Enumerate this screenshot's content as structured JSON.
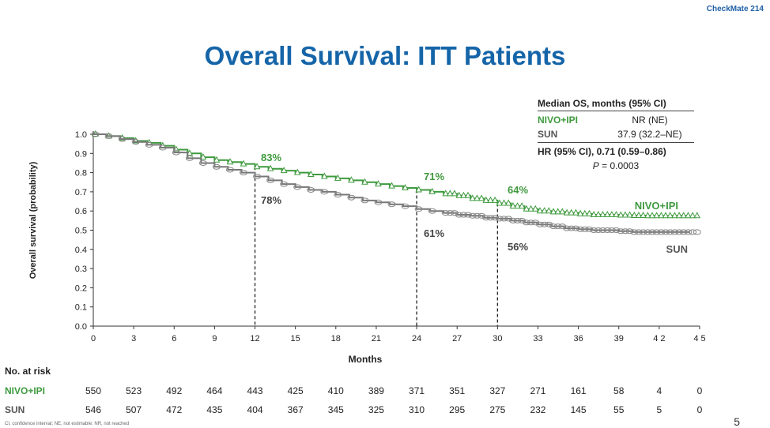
{
  "study_tag": "CheckMate 214",
  "title": "Overall Survival: ITT Patients",
  "page_number": "5",
  "footnote": "CI, confidence interval; NE, not estimable; NR, not reached",
  "median_table": {
    "header": "Median OS, months (95% CI)",
    "rows": [
      {
        "arm": "NIVO+IPI",
        "value": "NR (NE)",
        "color": "#3f9a3f"
      },
      {
        "arm": "SUN",
        "value": "37.9 (32.2–NE)",
        "color": "#555555"
      }
    ],
    "hr_text": "HR (95% CI), 0.71 (0.59–0.86)",
    "p_label": "P",
    "p_value": " = 0.0003"
  },
  "risk_table": {
    "title": "No. at risk",
    "rows": [
      {
        "name": "NIVO+IPI",
        "color": "#3f9a3f",
        "values": [
          "550",
          "523",
          "492",
          "464",
          "443",
          "425",
          "410",
          "389",
          "371",
          "351",
          "327",
          "271",
          "161",
          "58",
          "4",
          "0"
        ]
      },
      {
        "name": "SUN",
        "color": "#555555",
        "values": [
          "546",
          "507",
          "472",
          "435",
          "404",
          "367",
          "345",
          "325",
          "310",
          "295",
          "275",
          "232",
          "145",
          "55",
          "5",
          "0"
        ]
      }
    ]
  },
  "chart_data": {
    "type": "line",
    "title": "Overall Survival: ITT Patients",
    "xlabel": "Months",
    "ylabel": "Overall survival (probability)",
    "xlim": [
      0,
      45
    ],
    "ylim": [
      0,
      1.0
    ],
    "x_ticks": [
      0,
      3,
      6,
      9,
      12,
      15,
      18,
      21,
      24,
      27,
      30,
      33,
      36,
      39,
      42,
      45
    ],
    "x_tick_labels": [
      "0",
      "3",
      "6",
      "9",
      "12",
      "15",
      "18",
      "21",
      "24",
      "27",
      "30",
      "33",
      "36",
      "39",
      "4 2",
      "4 5"
    ],
    "y_ticks": [
      0,
      0.1,
      0.2,
      0.3,
      0.4,
      0.5,
      0.6,
      0.7,
      0.8,
      0.9,
      1.0
    ],
    "y_tick_labels": [
      "0.0",
      "0.1",
      "0.2",
      "0.3",
      "0.4",
      "0.5",
      "0.6",
      "0.7",
      "0.8",
      "0.9",
      "1.0"
    ],
    "series": [
      {
        "name": "NIVO+IPI",
        "color": "#3f9a3f",
        "marker": "triangle",
        "x": [
          0,
          1,
          2,
          3,
          4,
          5,
          6,
          7,
          8,
          9,
          10,
          11,
          12,
          13,
          14,
          15,
          16,
          17,
          18,
          19,
          20,
          21,
          22,
          23,
          24,
          25,
          26,
          27,
          28,
          29,
          30,
          31,
          32,
          33,
          34,
          35,
          36,
          37,
          38,
          39,
          40,
          41,
          42,
          43,
          44
        ],
        "y": [
          1.0,
          0.99,
          0.98,
          0.965,
          0.955,
          0.94,
          0.92,
          0.9,
          0.88,
          0.865,
          0.855,
          0.845,
          0.83,
          0.82,
          0.81,
          0.8,
          0.79,
          0.78,
          0.77,
          0.76,
          0.75,
          0.74,
          0.73,
          0.72,
          0.71,
          0.7,
          0.69,
          0.68,
          0.665,
          0.655,
          0.64,
          0.625,
          0.61,
          0.6,
          0.595,
          0.59,
          0.585,
          0.58,
          0.58,
          0.578,
          0.576,
          0.575,
          0.575,
          0.575,
          0.575
        ]
      },
      {
        "name": "SUN",
        "color": "#777777",
        "marker": "circle",
        "x": [
          0,
          1,
          2,
          3,
          4,
          5,
          6,
          7,
          8,
          9,
          10,
          11,
          12,
          13,
          14,
          15,
          16,
          17,
          18,
          19,
          20,
          21,
          22,
          23,
          24,
          25,
          26,
          27,
          28,
          29,
          30,
          31,
          32,
          33,
          34,
          35,
          36,
          37,
          38,
          39,
          40,
          41,
          42,
          43,
          44
        ],
        "y": [
          1.0,
          0.99,
          0.975,
          0.96,
          0.945,
          0.93,
          0.905,
          0.875,
          0.85,
          0.83,
          0.815,
          0.8,
          0.78,
          0.76,
          0.74,
          0.725,
          0.71,
          0.7,
          0.685,
          0.67,
          0.655,
          0.645,
          0.635,
          0.625,
          0.61,
          0.6,
          0.59,
          0.58,
          0.575,
          0.565,
          0.56,
          0.55,
          0.54,
          0.53,
          0.52,
          0.51,
          0.505,
          0.5,
          0.5,
          0.495,
          0.49,
          0.49,
          0.49,
          0.49,
          0.49
        ]
      }
    ],
    "reference_lines_x": [
      12,
      24,
      30
    ],
    "annotations": [
      {
        "x": 12,
        "text": "83%",
        "series": "NIVO+IPI"
      },
      {
        "x": 12,
        "text": "78%",
        "series": "SUN"
      },
      {
        "x": 24,
        "text": "71%",
        "series": "NIVO+IPI"
      },
      {
        "x": 24,
        "text": "61%",
        "series": "SUN"
      },
      {
        "x": 30,
        "text": "64%",
        "series": "NIVO+IPI"
      },
      {
        "x": 30,
        "text": "56%",
        "series": "SUN"
      }
    ],
    "series_end_labels": [
      "NIVO+IPI",
      "SUN"
    ],
    "grid": false
  }
}
